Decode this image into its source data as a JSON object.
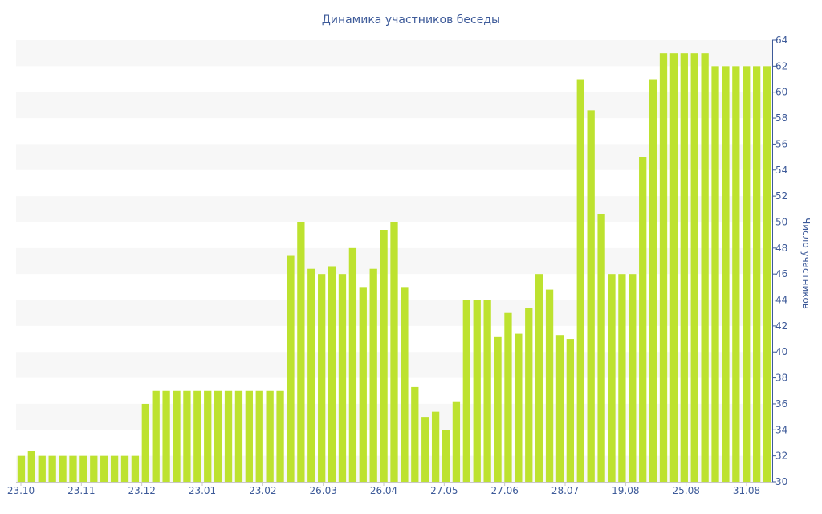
{
  "chart_data": {
    "type": "bar",
    "title": "Динамика участников беседы",
    "xlabel": "",
    "ylabel": "Число участников",
    "ylim": [
      30,
      64
    ],
    "yticks": [
      30,
      32,
      34,
      36,
      38,
      40,
      42,
      44,
      46,
      48,
      50,
      52,
      54,
      56,
      58,
      60,
      62,
      64
    ],
    "y_axis_position": "right",
    "grid": "alternating horizontal bands",
    "bar_color": "#bde22f",
    "band_color": "#f7f7f7",
    "text_color": "#3d5a99",
    "x_tick_labels": [
      "23.10",
      "23.11",
      "23.12",
      "23.01",
      "23.02",
      "26.03",
      "26.04",
      "27.05",
      "27.06",
      "28.07",
      "19.08",
      "25.08",
      "31.08"
    ],
    "values": [
      32,
      32.4,
      32,
      32,
      32,
      32,
      32,
      32,
      32,
      32,
      32,
      32,
      36,
      37,
      37,
      37,
      37,
      37,
      37,
      37,
      37,
      37,
      37,
      37,
      37,
      37,
      47.4,
      50,
      46.4,
      46,
      46.6,
      46,
      48,
      45,
      46.4,
      49.4,
      50,
      45,
      37.3,
      35,
      35.4,
      34,
      36.2,
      44,
      44,
      44,
      41.2,
      43,
      41.4,
      43.4,
      46,
      44.8,
      41.3,
      41,
      61,
      58.6,
      50.6,
      46,
      46,
      46,
      55,
      61,
      63,
      63,
      63,
      63,
      63,
      62,
      62,
      62,
      62,
      62,
      62
    ]
  }
}
